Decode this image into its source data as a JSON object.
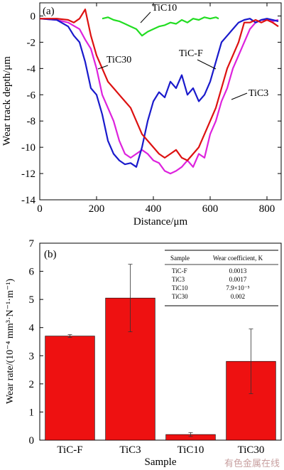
{
  "colors": {
    "TiC-F": "#1a1acc",
    "TiC3": "#dd22dd",
    "TiC10": "#22dd22",
    "TiC30": "#dd1111",
    "bar": "#ee1111",
    "axis": "#000000"
  },
  "watermark": "有色金属在线",
  "chart_data": [
    {
      "type": "line",
      "panel_label": "(a)",
      "xlabel": "Distance/μm",
      "ylabel": "Wear track depth/μm",
      "xlim": [
        0,
        850
      ],
      "ylim": [
        -14,
        1
      ],
      "xticks": [
        "0",
        "200",
        "400",
        "600",
        "800"
      ],
      "yticks": [
        "0",
        "-2",
        "-4",
        "-6",
        "-8",
        "-10",
        "-12",
        "-14"
      ],
      "annotations": [
        "TiC10",
        "TiC30",
        "TiC-F",
        "TiC3"
      ],
      "series": [
        {
          "name": "TiC-F",
          "x": [
            0,
            60,
            100,
            120,
            140,
            160,
            180,
            200,
            220,
            240,
            260,
            280,
            300,
            320,
            340,
            360,
            380,
            400,
            420,
            440,
            460,
            480,
            500,
            520,
            540,
            560,
            580,
            600,
            620,
            640,
            660,
            680,
            700,
            720,
            740,
            760,
            780,
            800,
            820,
            840
          ],
          "y": [
            -0.2,
            -0.3,
            -0.8,
            -1.5,
            -2.0,
            -3.5,
            -5.5,
            -6.0,
            -7.5,
            -9.5,
            -10.5,
            -11.0,
            -11.3,
            -11.2,
            -11.5,
            -10.0,
            -8.0,
            -6.5,
            -5.8,
            -6.2,
            -5.0,
            -5.5,
            -4.5,
            -6.0,
            -5.5,
            -6.5,
            -6.0,
            -5.0,
            -3.5,
            -2.0,
            -1.5,
            -1.0,
            -0.5,
            -0.3,
            -0.2,
            -0.5,
            -0.3,
            -0.2,
            -0.3,
            -0.4
          ]
        },
        {
          "name": "TiC3",
          "x": [
            0,
            60,
            100,
            140,
            160,
            180,
            200,
            220,
            240,
            260,
            280,
            300,
            320,
            340,
            360,
            380,
            400,
            420,
            440,
            460,
            480,
            500,
            520,
            540,
            560,
            580,
            600,
            620,
            640,
            660,
            680,
            700,
            720,
            740,
            760,
            780,
            800,
            820,
            840
          ],
          "y": [
            -0.2,
            -0.3,
            -0.5,
            -1.0,
            -1.8,
            -2.5,
            -4.0,
            -6.0,
            -7.0,
            -8.0,
            -9.5,
            -10.5,
            -10.8,
            -10.5,
            -10.2,
            -10.5,
            -11.0,
            -11.2,
            -11.8,
            -12.0,
            -11.8,
            -11.5,
            -11.0,
            -11.5,
            -10.5,
            -10.8,
            -9.0,
            -8.0,
            -6.5,
            -5.5,
            -4.0,
            -3.0,
            -2.0,
            -1.0,
            -0.5,
            -0.3,
            -0.3,
            -0.4,
            -0.3
          ]
        },
        {
          "name": "TiC10",
          "x": [
            220,
            240,
            260,
            280,
            300,
            320,
            340,
            360,
            380,
            400,
            420,
            440,
            460,
            480,
            500,
            520,
            540,
            560,
            580,
            600,
            620,
            630
          ],
          "y": [
            -0.2,
            -0.1,
            -0.3,
            -0.4,
            -0.6,
            -0.8,
            -1.0,
            -1.5,
            -1.2,
            -1.0,
            -0.8,
            -0.7,
            -0.5,
            -0.6,
            -0.3,
            -0.5,
            -0.2,
            -0.3,
            -0.1,
            -0.2,
            -0.1,
            -0.2
          ]
        },
        {
          "name": "TiC30",
          "x": [
            0,
            60,
            100,
            120,
            140,
            160,
            180,
            200,
            220,
            240,
            260,
            280,
            300,
            320,
            340,
            360,
            380,
            400,
            420,
            440,
            460,
            480,
            500,
            520,
            540,
            560,
            580,
            600,
            620,
            640,
            660,
            680,
            700,
            720,
            740,
            760,
            780,
            800,
            820,
            840
          ],
          "y": [
            -0.2,
            -0.2,
            -0.3,
            -0.5,
            -0.2,
            0.5,
            -1.5,
            -3.0,
            -4.0,
            -5.0,
            -5.5,
            -6.0,
            -6.5,
            -7.0,
            -8.0,
            -9.0,
            -9.5,
            -10.0,
            -10.5,
            -10.8,
            -10.5,
            -10.2,
            -10.8,
            -11.0,
            -10.5,
            -10.0,
            -9.0,
            -8.0,
            -7.0,
            -5.5,
            -4.0,
            -3.0,
            -2.0,
            -0.5,
            -0.5,
            -0.3,
            -0.5,
            -0.3,
            -0.5,
            -0.8
          ]
        }
      ]
    },
    {
      "type": "bar",
      "panel_label": "(b)",
      "xlabel": "Sample",
      "ylabel": "Wear rate/(10⁻⁴ mm³·N⁻¹·m⁻¹)",
      "ylim": [
        0,
        7
      ],
      "yticks": [
        "0",
        "1",
        "2",
        "3",
        "4",
        "5",
        "6",
        "7"
      ],
      "categories": [
        "TiC-F",
        "TiC3",
        "TiC10",
        "TiC30"
      ],
      "values": [
        3.7,
        5.05,
        0.2,
        2.8
      ],
      "errors": [
        0.05,
        1.2,
        0.07,
        1.15
      ],
      "table": {
        "headers": [
          "Sample",
          "Wear coefficient, K"
        ],
        "rows": [
          [
            "TiC-F",
            "0.0013"
          ],
          [
            "TiC3",
            "0.0017"
          ],
          [
            "TiC10",
            "7.9×10⁻⁵"
          ],
          [
            "TiC30",
            "0.002"
          ]
        ]
      }
    }
  ]
}
